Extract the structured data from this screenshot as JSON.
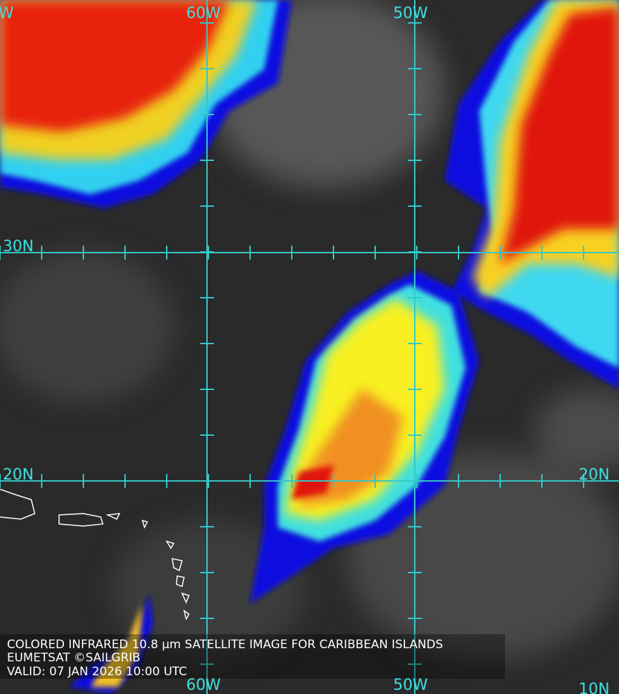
{
  "grid_labels": {
    "top": [
      "W",
      "60W",
      "50W"
    ],
    "left": [
      "30N",
      "20N"
    ],
    "right": [
      "20N",
      "10N"
    ],
    "bottom": [
      "60W",
      "50W"
    ]
  },
  "caption": {
    "lines": [
      "COLORED INFRARED 10.8 µm SATELLITE IMAGE FOR CARIBBEAN ISLANDS",
      "EUMETSAT ©SAILGRIB",
      "VALID:  07 JAN 2026 10:00 UTC"
    ]
  }
}
